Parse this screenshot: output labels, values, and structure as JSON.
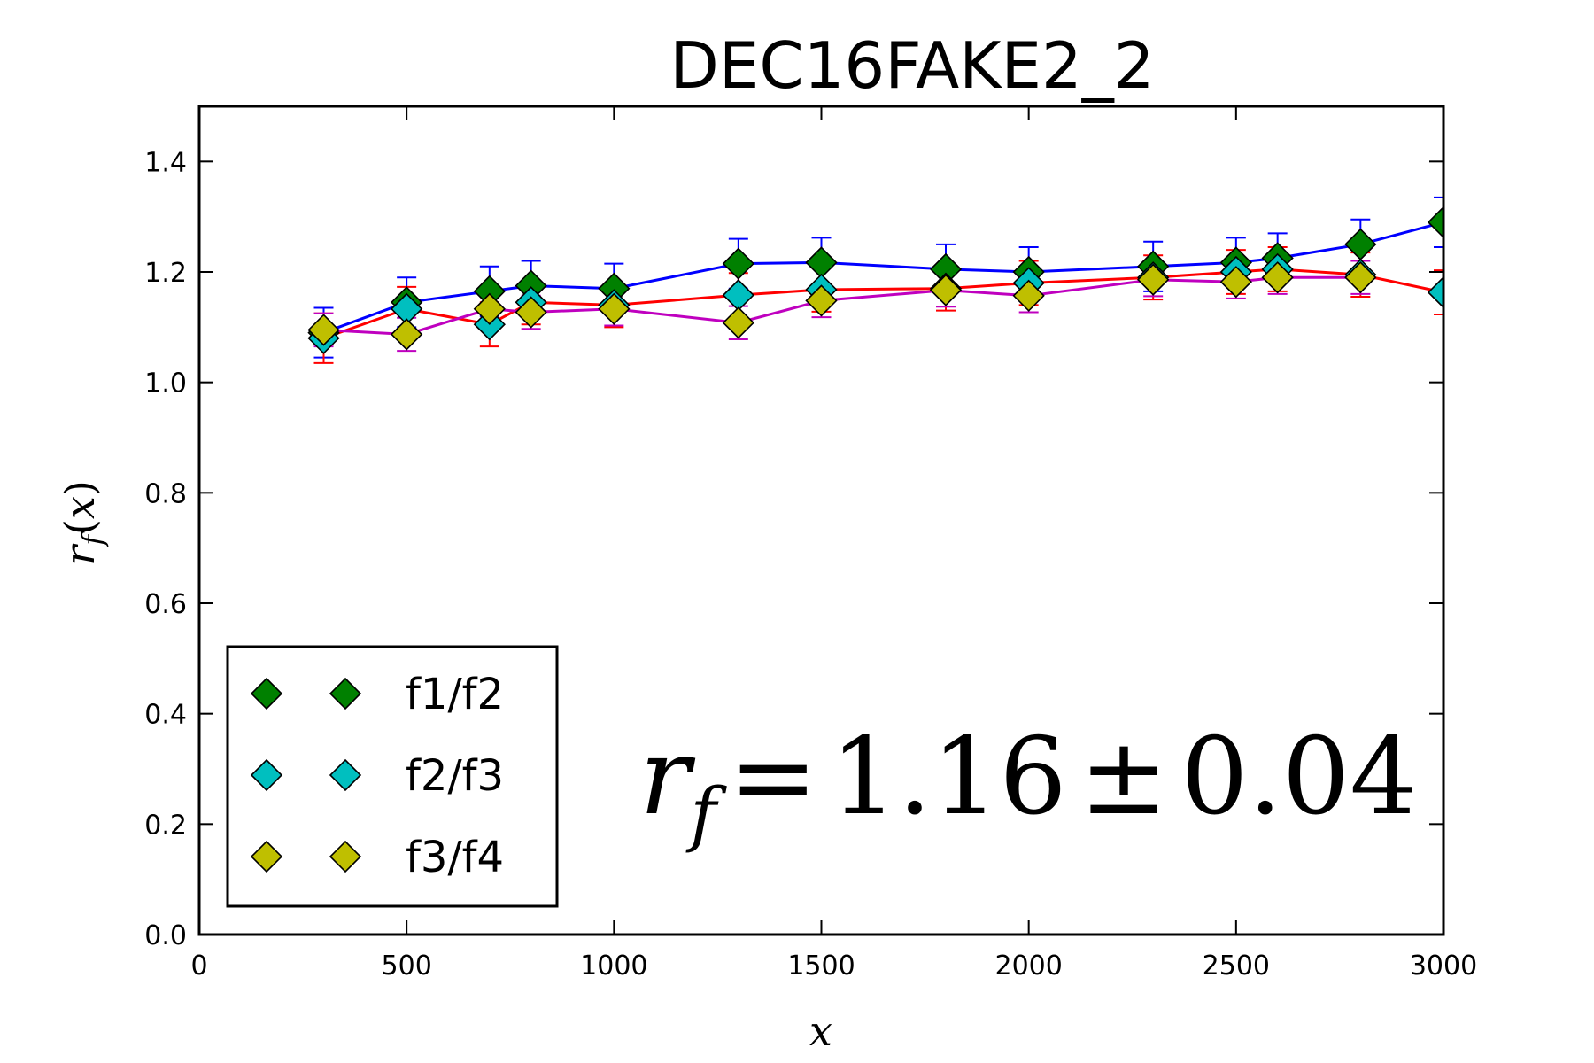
{
  "chart_data": {
    "type": "line",
    "title": "DEC16FAKE2_2",
    "xlabel": "x",
    "ylabel": "r_f(x)",
    "xlim": [
      0,
      3000
    ],
    "ylim": [
      0.0,
      1.5
    ],
    "xticks": [
      "0",
      "500",
      "1000",
      "1500",
      "2000",
      "2500",
      "3000"
    ],
    "yticks": [
      "0.0",
      "0.2",
      "0.4",
      "0.6",
      "0.8",
      "1.0",
      "1.2",
      "1.4"
    ],
    "grid": false,
    "legend_position": "lower-left",
    "series": [
      {
        "name": "f1/f2",
        "line_color": "#0000ff",
        "marker_color": "#008000",
        "x": [
          300,
          500,
          700,
          800,
          1000,
          1300,
          1500,
          1800,
          2000,
          2300,
          2500,
          2600,
          2800,
          3000
        ],
        "y": [
          1.09,
          1.145,
          1.165,
          1.175,
          1.17,
          1.215,
          1.217,
          1.205,
          1.2,
          1.21,
          1.217,
          1.225,
          1.25,
          1.29
        ],
        "err": [
          0.045,
          0.045,
          0.045,
          0.045,
          0.045,
          0.045,
          0.045,
          0.045,
          0.045,
          0.045,
          0.045,
          0.045,
          0.045,
          0.045
        ]
      },
      {
        "name": "f2/f3",
        "line_color": "#ff0000",
        "marker_color": "#00bfbf",
        "x": [
          300,
          500,
          700,
          800,
          1000,
          1300,
          1500,
          1800,
          2000,
          2300,
          2500,
          2600,
          2800,
          3000
        ],
        "y": [
          1.08,
          1.133,
          1.105,
          1.145,
          1.14,
          1.158,
          1.168,
          1.17,
          1.18,
          1.19,
          1.2,
          1.205,
          1.195,
          1.163
        ],
        "err": [
          0.045,
          0.04,
          0.04,
          0.04,
          0.04,
          0.04,
          0.04,
          0.04,
          0.04,
          0.04,
          0.04,
          0.04,
          0.04,
          0.04
        ]
      },
      {
        "name": "f3/f4",
        "line_color": "#bf00bf",
        "marker_color": "#bfbf00",
        "x": [
          300,
          500,
          700,
          800,
          1000,
          1300,
          1500,
          1800,
          2000,
          2300,
          2500,
          2600,
          2800
        ],
        "y": [
          1.095,
          1.087,
          1.133,
          1.127,
          1.133,
          1.108,
          1.148,
          1.167,
          1.157,
          1.186,
          1.182,
          1.19,
          1.19
        ],
        "err": [
          0.03,
          0.03,
          0.03,
          0.03,
          0.03,
          0.03,
          0.03,
          0.03,
          0.03,
          0.03,
          0.03,
          0.03,
          0.03
        ]
      }
    ],
    "annotation": {
      "symbol": "r",
      "subscript": "f",
      "equals": "=",
      "value": "1.16",
      "pm": "±",
      "uncertainty": "0.04"
    }
  }
}
